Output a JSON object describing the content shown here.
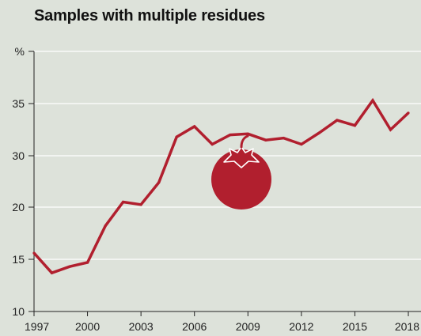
{
  "chart_data": {
    "type": "line",
    "title": "Samples with multiple residues",
    "y_unit_label": "%",
    "xlabel": "",
    "ylabel": "",
    "x_ticks": [
      1997,
      2000,
      2003,
      2006,
      2009,
      2012,
      2015,
      2018
    ],
    "y_ticks": [
      10,
      15,
      20,
      30,
      35
    ],
    "y_tick_labels": [
      "10",
      "15",
      "20",
      "30",
      "35"
    ],
    "xlim": [
      1997,
      2018
    ],
    "grid": "horizontal",
    "series": [
      {
        "x": [
          1997,
          1998,
          1999,
          2000,
          2001,
          2002,
          2003,
          2004,
          2005,
          2006,
          2007,
          2008,
          2009,
          2010,
          2011,
          2012,
          2013,
          2014,
          2015,
          2016,
          2017,
          2018
        ],
        "y": [
          15.6,
          13.7,
          14.3,
          14.7,
          18.2,
          21.0,
          20.5,
          24.8,
          31.8,
          32.8,
          31.1,
          32.0,
          32.1,
          31.5,
          31.7,
          31.1,
          32.2,
          33.4,
          32.9,
          35.3,
          32.5,
          34.1
        ]
      }
    ],
    "colors": {
      "line": "#b11f2e",
      "axis": "#222222",
      "grid": "#ffffff",
      "background": "#dde2da",
      "tomato": "#b11f2e",
      "tomato_highlight": "#ffffff"
    },
    "icon": "tomato-icon"
  }
}
